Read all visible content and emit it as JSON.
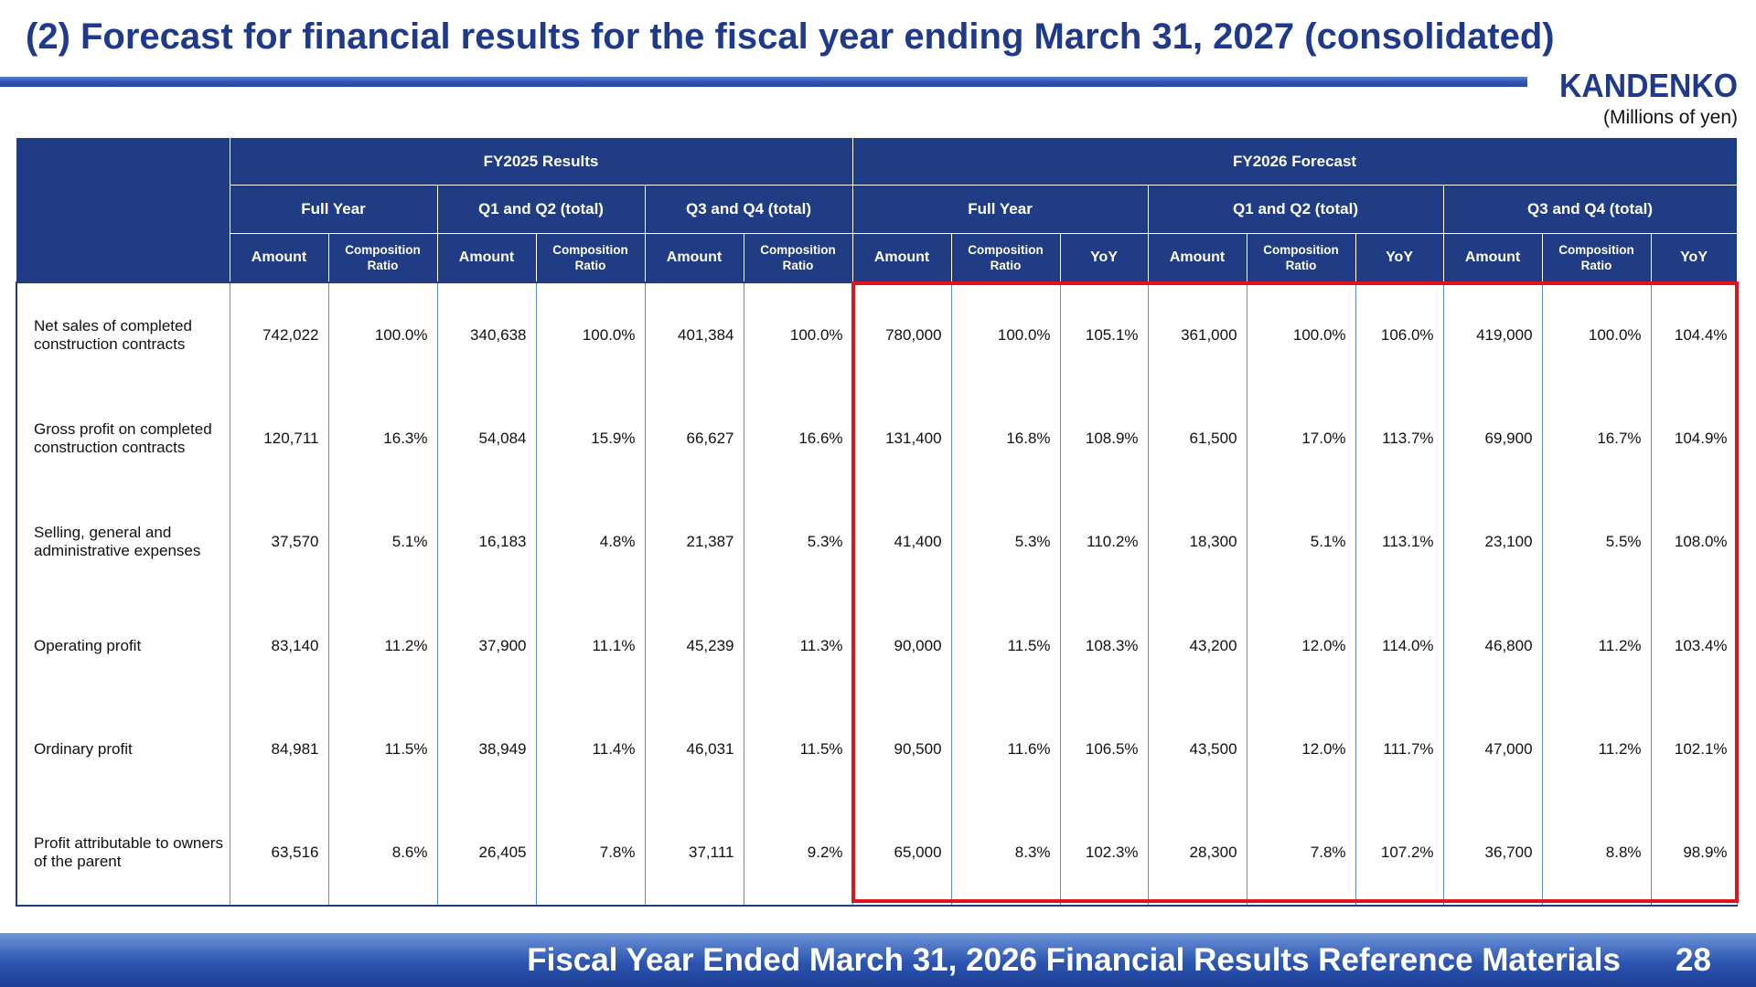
{
  "header": {
    "title": "(2) Forecast for financial results for the fiscal year ending March 31, 2027 (consolidated)",
    "logo_text": "KANDENKO",
    "unit_note": "(Millions of yen)"
  },
  "table": {
    "groups": [
      "FY2025 Results",
      "FY2026 Forecast"
    ],
    "periods": [
      "Full Year",
      "Q1 and Q2 (total)",
      "Q3 and Q4 (total)",
      "Full Year",
      "Q1 and Q2 (total)",
      "Q3 and Q4 (total)"
    ],
    "col_labels": {
      "amount": "Amount",
      "ratio_line1": "Composition",
      "ratio_line2": "Ratio",
      "yoy": "YoY"
    },
    "rows": [
      {
        "label": "Net sales of completed construction contracts",
        "values": [
          "742,022",
          "100.0%",
          "340,638",
          "100.0%",
          "401,384",
          "100.0%",
          "780,000",
          "100.0%",
          "105.1%",
          "361,000",
          "100.0%",
          "106.0%",
          "419,000",
          "100.0%",
          "104.4%"
        ]
      },
      {
        "label": "Gross profit on completed construction contracts",
        "values": [
          "120,711",
          "16.3%",
          "54,084",
          "15.9%",
          "66,627",
          "16.6%",
          "131,400",
          "16.8%",
          "108.9%",
          "61,500",
          "17.0%",
          "113.7%",
          "69,900",
          "16.7%",
          "104.9%"
        ]
      },
      {
        "label": "Selling, general and administrative expenses",
        "values": [
          "37,570",
          "5.1%",
          "16,183",
          "4.8%",
          "21,387",
          "5.3%",
          "41,400",
          "5.3%",
          "110.2%",
          "18,300",
          "5.1%",
          "113.1%",
          "23,100",
          "5.5%",
          "108.0%"
        ]
      },
      {
        "label": "Operating profit",
        "values": [
          "83,140",
          "11.2%",
          "37,900",
          "11.1%",
          "45,239",
          "11.3%",
          "90,000",
          "11.5%",
          "108.3%",
          "43,200",
          "12.0%",
          "114.0%",
          "46,800",
          "11.2%",
          "103.4%"
        ]
      },
      {
        "label": "Ordinary profit",
        "values": [
          "84,981",
          "11.5%",
          "38,949",
          "11.4%",
          "46,031",
          "11.5%",
          "90,500",
          "11.6%",
          "106.5%",
          "43,500",
          "12.0%",
          "111.7%",
          "47,000",
          "11.2%",
          "102.1%"
        ]
      },
      {
        "label": "Profit attributable to owners of the parent",
        "values": [
          "63,516",
          "8.6%",
          "26,405",
          "7.8%",
          "37,111",
          "9.2%",
          "65,000",
          "8.3%",
          "102.3%",
          "28,300",
          "7.8%",
          "107.2%",
          "36,700",
          "8.8%",
          "98.9%"
        ]
      }
    ]
  },
  "footer": {
    "text": "Fiscal Year Ended March 31, 2026 Financial Results Reference Materials",
    "page_number": "28"
  },
  "colors": {
    "brand_blue": "#203c85",
    "highlight_red": "#e0141e"
  }
}
